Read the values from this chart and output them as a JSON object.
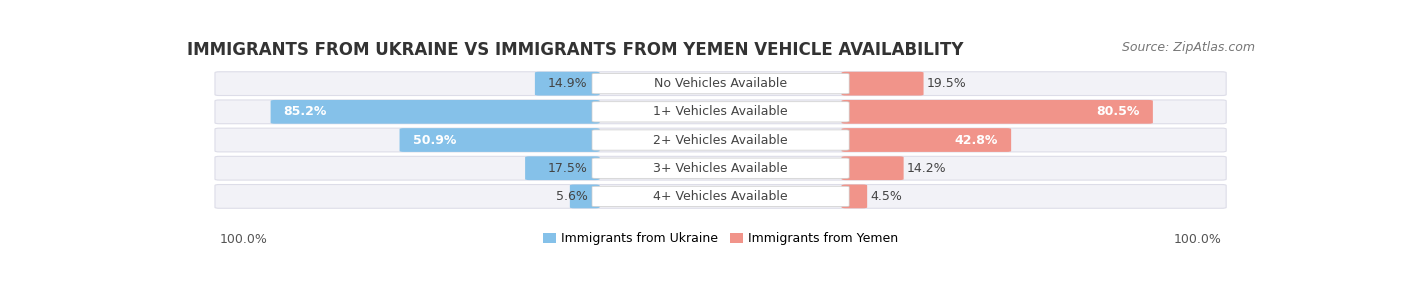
{
  "title": "IMMIGRANTS FROM UKRAINE VS IMMIGRANTS FROM YEMEN VEHICLE AVAILABILITY",
  "source": "Source: ZipAtlas.com",
  "categories": [
    "No Vehicles Available",
    "1+ Vehicles Available",
    "2+ Vehicles Available",
    "3+ Vehicles Available",
    "4+ Vehicles Available"
  ],
  "ukraine_values": [
    14.9,
    85.2,
    50.9,
    17.5,
    5.6
  ],
  "yemen_values": [
    19.5,
    80.5,
    42.8,
    14.2,
    4.5
  ],
  "ukraine_color": "#85C1E9",
  "ukraine_color_dark": "#5DADE2",
  "yemen_color": "#F1948A",
  "yemen_color_dark": "#E74C8B",
  "ukraine_label": "Immigrants from Ukraine",
  "yemen_label": "Immigrants from Yemen",
  "bar_bg_color": "#F2F2F7",
  "bar_border_color": "#DDDDE8",
  "label_100_left": "100.0%",
  "label_100_right": "100.0%",
  "title_fontsize": 12,
  "source_fontsize": 9,
  "label_fontsize": 9,
  "category_fontsize": 9,
  "value_fontsize": 9
}
